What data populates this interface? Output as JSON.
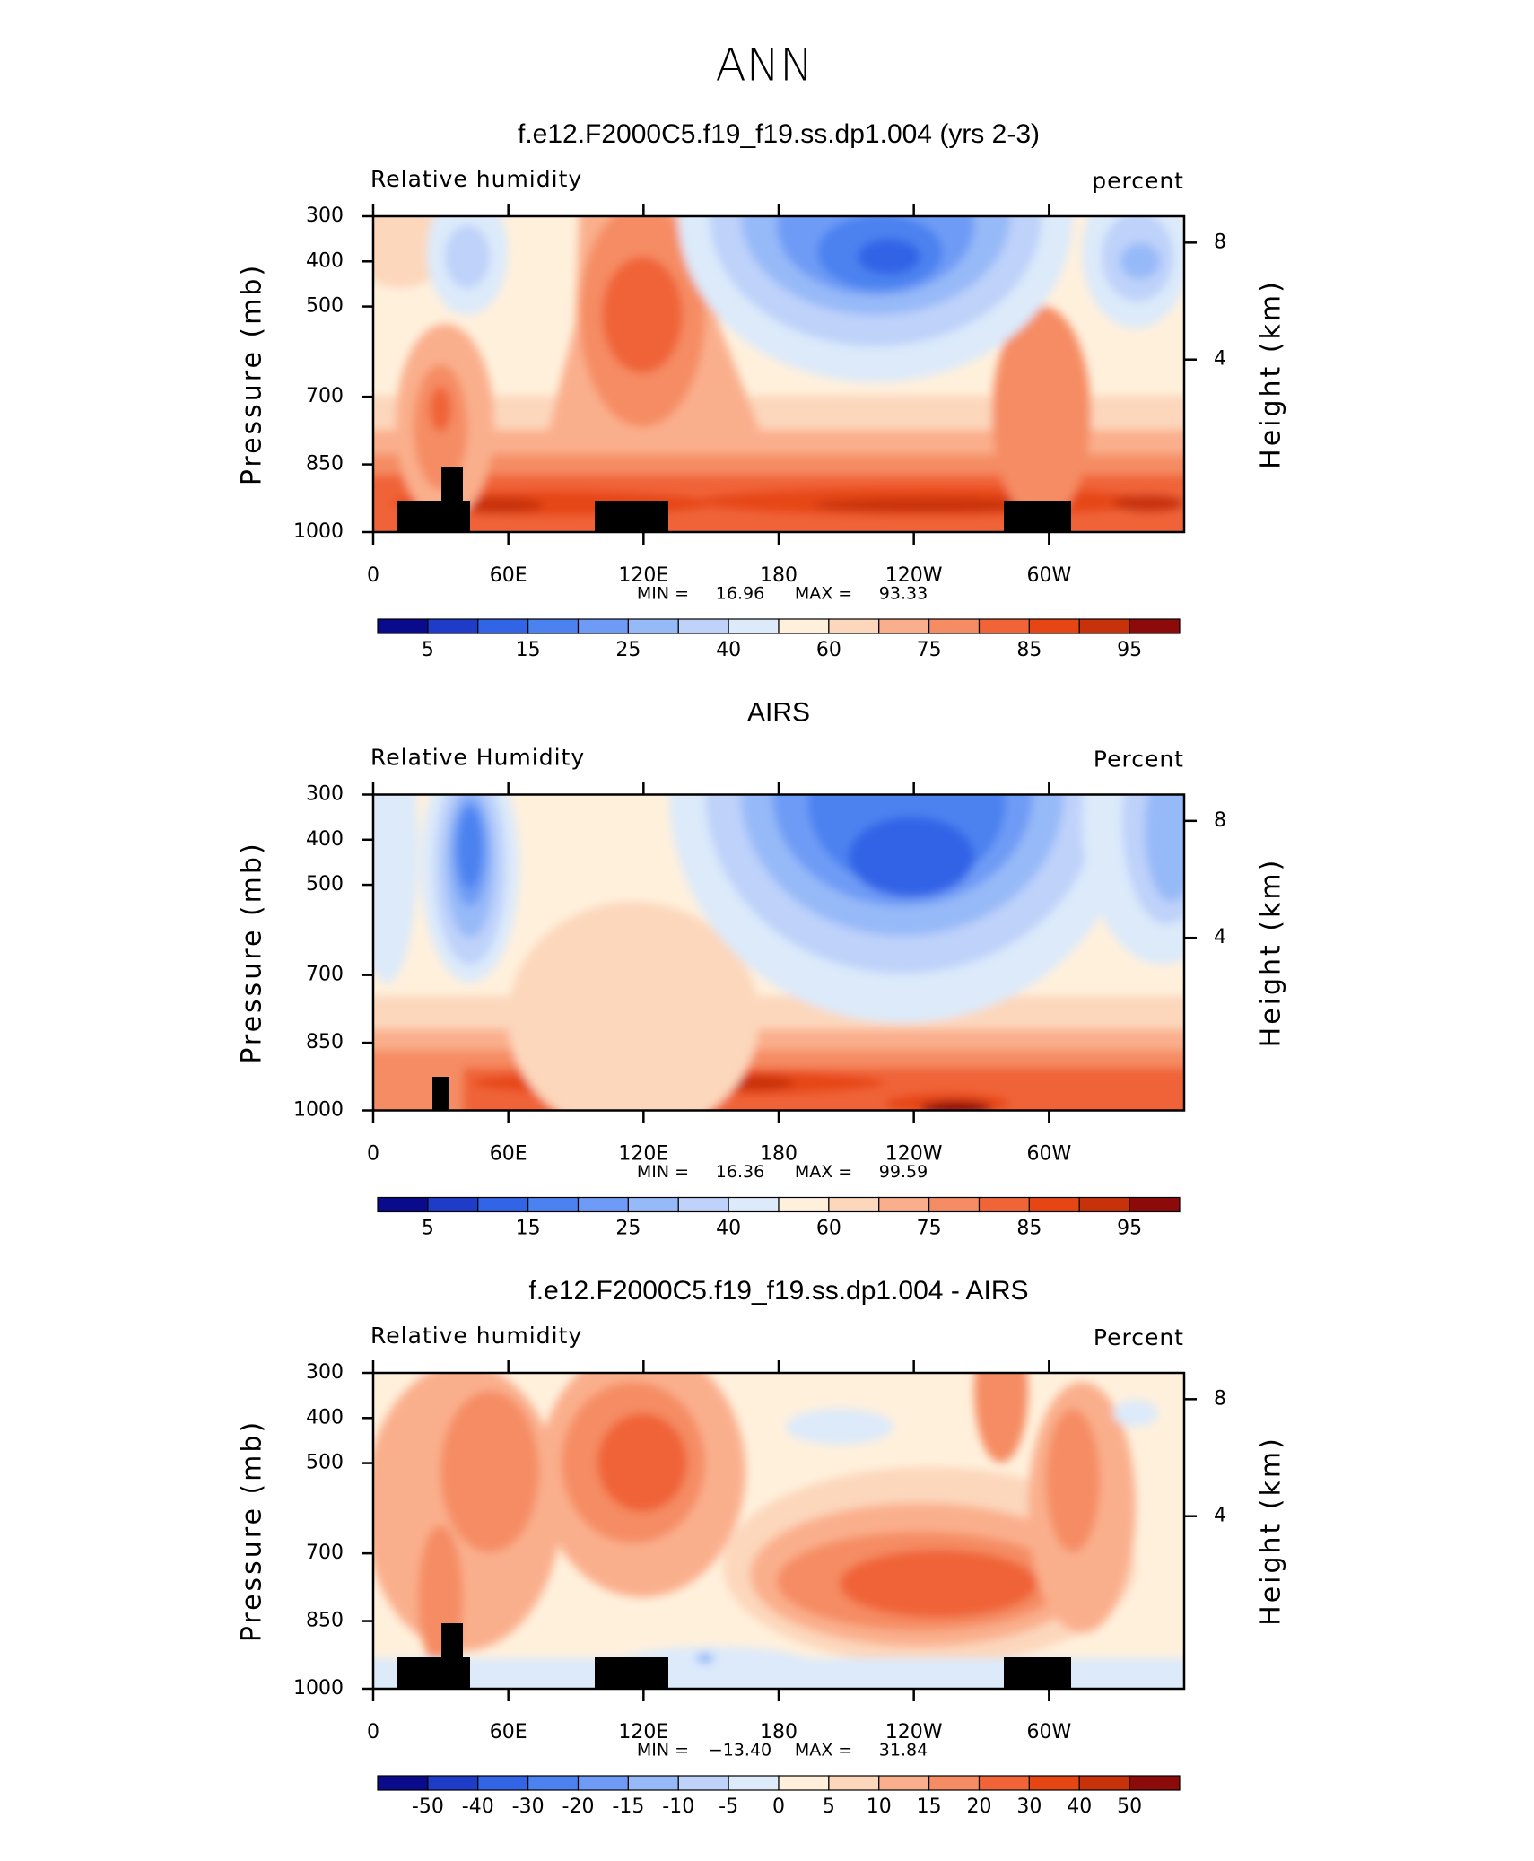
{
  "title": "ANN",
  "chart_data": [
    {
      "type": "contour",
      "title": "f.e12.F2000C5.f19_f19.ss.dp1.004 (yrs 2-3)",
      "left_label": "Relative humidity",
      "right_label": "percent",
      "ylabel": "Pressure (mb)",
      "y2label": "Height (km)",
      "xlim": [
        0,
        360
      ],
      "xticks": [
        0,
        {
          "value": 60,
          "label": "60E"
        },
        {
          "value": 120,
          "label": "120E"
        },
        180,
        {
          "value": 240,
          "label": "120W"
        },
        {
          "value": 300,
          "label": "60W"
        }
      ],
      "ylim": [
        1000,
        300
      ],
      "yticks": [
        300,
        400,
        500,
        700,
        850,
        1000
      ],
      "y2lim": [
        -1.9,
        8.9
      ],
      "y2ticks": [
        4,
        8
      ],
      "min_label": "MIN =",
      "min": 16.96,
      "max_label": "MAX =",
      "max": 93.33,
      "colorbar": {
        "colors": [
          "#0a0a8c",
          "#1e3cc8",
          "#3264e6",
          "#4b82f0",
          "#6e9bf5",
          "#96b9f8",
          "#bed2fa",
          "#dceafa",
          "#fff0dc",
          "#fcd7bc",
          "#faaf8c",
          "#f58c64",
          "#f06438",
          "#e64614",
          "#c8320a",
          "#8c0a0a"
        ],
        "ticks": [
          5,
          15,
          25,
          40,
          60,
          75,
          85,
          95
        ]
      }
    },
    {
      "type": "contour",
      "title": "AIRS",
      "left_label": "Relative Humidity",
      "right_label": "Percent",
      "ylabel": "Pressure (mb)",
      "y2label": "Height (km)",
      "xlim": [
        0,
        360
      ],
      "xticks": [
        0,
        {
          "value": 60,
          "label": "60E"
        },
        {
          "value": 120,
          "label": "120E"
        },
        180,
        {
          "value": 240,
          "label": "120W"
        },
        {
          "value": 300,
          "label": "60W"
        }
      ],
      "ylim": [
        1000,
        300
      ],
      "yticks": [
        300,
        400,
        500,
        700,
        850,
        1000
      ],
      "y2lim": [
        -1.9,
        8.9
      ],
      "y2ticks": [
        4,
        8
      ],
      "min_label": "MIN =",
      "min": 16.36,
      "max_label": "MAX =",
      "max": 99.59,
      "colorbar": {
        "colors": [
          "#0a0a8c",
          "#1e3cc8",
          "#3264e6",
          "#4b82f0",
          "#6e9bf5",
          "#96b9f8",
          "#bed2fa",
          "#dceafa",
          "#fff0dc",
          "#fcd7bc",
          "#faaf8c",
          "#f58c64",
          "#f06438",
          "#e64614",
          "#c8320a",
          "#8c0a0a"
        ],
        "ticks": [
          5,
          15,
          25,
          40,
          60,
          75,
          85,
          95
        ]
      }
    },
    {
      "type": "contour",
      "title": "f.e12.F2000C5.f19_f19.ss.dp1.004 - AIRS",
      "left_label": "Relative humidity",
      "right_label": "Percent",
      "ylabel": "Pressure (mb)",
      "y2label": "Height (km)",
      "xlim": [
        0,
        360
      ],
      "xticks": [
        0,
        {
          "value": 60,
          "label": "60E"
        },
        {
          "value": 120,
          "label": "120E"
        },
        180,
        {
          "value": 240,
          "label": "120W"
        },
        {
          "value": 300,
          "label": "60W"
        }
      ],
      "ylim": [
        1000,
        300
      ],
      "yticks": [
        300,
        400,
        500,
        700,
        850,
        1000
      ],
      "y2lim": [
        -1.9,
        8.9
      ],
      "y2ticks": [
        4,
        8
      ],
      "min_label": "MIN =",
      "min": {
        "value": -13.4,
        "label": "−13.40"
      },
      "max_label": "MAX =",
      "max": 31.84,
      "colorbar": {
        "colors": [
          "#0a0a8c",
          "#1e3cc8",
          "#3264e6",
          "#4b82f0",
          "#6e9bf5",
          "#96b9f8",
          "#bed2fa",
          "#dceafa",
          "#fff0dc",
          "#fcd7bc",
          "#faaf8c",
          "#f58c64",
          "#f06438",
          "#e64614",
          "#c8320a",
          "#8c0a0a"
        ],
        "ticks": [
          -50,
          -40,
          -30,
          -20,
          -15,
          -10,
          -5,
          0,
          5,
          10,
          15,
          20,
          30,
          40,
          50
        ]
      }
    }
  ]
}
